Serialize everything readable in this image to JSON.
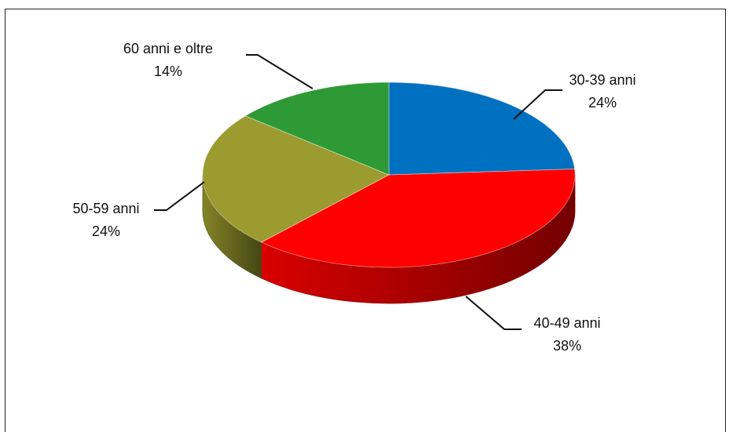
{
  "chart_data": {
    "type": "pie",
    "title": "",
    "style": "3d",
    "slices": [
      {
        "label": "30-39 anni",
        "value": 24,
        "pct_text": "24%",
        "color": "#0070C0"
      },
      {
        "label": "40-49 anni",
        "value": 38,
        "pct_text": "38%",
        "color": "#FF0000"
      },
      {
        "label": "50-59 anni",
        "value": 24,
        "pct_text": "24%",
        "color": "#9B9B2F"
      },
      {
        "label": "60 anni e oltre",
        "value": 14,
        "pct_text": "14%",
        "color": "#2E9A35"
      }
    ],
    "legend": "none",
    "start_angle": "12 o'clock",
    "direction": "clockwise"
  }
}
